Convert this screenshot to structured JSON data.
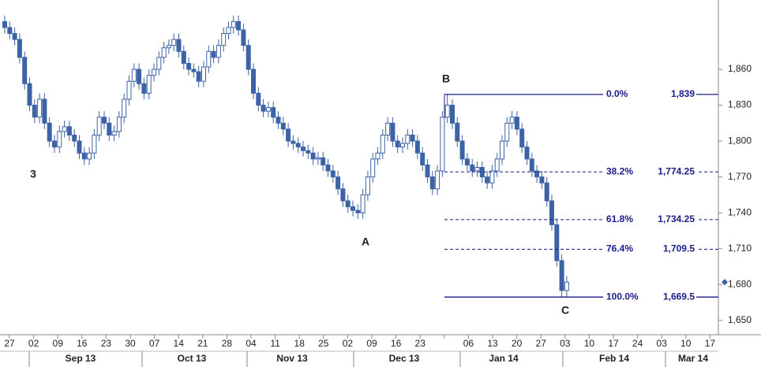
{
  "chart_data": {
    "type": "candlestick",
    "ylim": [
      1638,
      1918
    ],
    "yticks": [
      {
        "value": 1650,
        "label": "1,650"
      },
      {
        "value": 1680,
        "label": "1,680"
      },
      {
        "value": 1710,
        "label": "1,710"
      },
      {
        "value": 1740,
        "label": "1,740"
      },
      {
        "value": 1770,
        "label": "1,770"
      },
      {
        "value": 1800,
        "label": "1,800"
      },
      {
        "value": 1830,
        "label": "1,830"
      },
      {
        "value": 1860,
        "label": "1,860"
      }
    ],
    "categories": [
      "27",
      "02",
      "09",
      "16",
      "23",
      "30",
      "07",
      "14",
      "21",
      "28",
      "04",
      "11",
      "18",
      "25",
      "02",
      "09",
      "16",
      "23",
      null,
      "06",
      "13",
      "20",
      "27",
      "03",
      "10",
      "17",
      "24",
      "03",
      "10",
      "17"
    ],
    "months": [
      "Sep 13",
      "Oct 13",
      "Nov 13",
      "Dec 13",
      "Jan 14",
      "Feb 14",
      "Mar 14"
    ],
    "up_color": "#ffffff",
    "down_color": "#3c63a6",
    "line_color": "#3c63a6",
    "fib_color": "#1c1c8a",
    "fib_levels": [
      {
        "label": "0.0%",
        "value": 1839,
        "value_label": "1,839"
      },
      {
        "label": "38.2%",
        "value": 1774.25,
        "value_label": "1,774.25"
      },
      {
        "label": "61.8%",
        "value": 1734.25,
        "value_label": "1,734.25"
      },
      {
        "label": "76.4%",
        "value": 1709.5,
        "value_label": "1,709.5"
      },
      {
        "label": "100.0%",
        "value": 1669.5,
        "value_label": "1,669.5"
      }
    ],
    "points": [
      "3",
      "A",
      "B",
      "C"
    ],
    "candles": [
      [
        1900,
        1905,
        1890,
        1895
      ],
      [
        1895,
        1900,
        1885,
        1890
      ],
      [
        1890,
        1895,
        1880,
        1885
      ],
      [
        1885,
        1890,
        1865,
        1870
      ],
      [
        1870,
        1875,
        1843,
        1848
      ],
      [
        1848,
        1853,
        1825,
        1830
      ],
      [
        1830,
        1835,
        1815,
        1820
      ],
      [
        1820,
        1840,
        1815,
        1835
      ],
      [
        1835,
        1840,
        1810,
        1815
      ],
      [
        1815,
        1820,
        1795,
        1800
      ],
      [
        1800,
        1805,
        1790,
        1795
      ],
      [
        1795,
        1813,
        1790,
        1808
      ],
      [
        1808,
        1817,
        1803,
        1812
      ],
      [
        1812,
        1817,
        1800,
        1805
      ],
      [
        1805,
        1810,
        1795,
        1800
      ],
      [
        1800,
        1805,
        1785,
        1790
      ],
      [
        1790,
        1795,
        1780,
        1785
      ],
      [
        1785,
        1795,
        1780,
        1790
      ],
      [
        1790,
        1810,
        1785,
        1805
      ],
      [
        1805,
        1825,
        1800,
        1820
      ],
      [
        1820,
        1825,
        1810,
        1815
      ],
      [
        1815,
        1820,
        1800,
        1805
      ],
      [
        1805,
        1813,
        1800,
        1808
      ],
      [
        1808,
        1825,
        1803,
        1820
      ],
      [
        1820,
        1840,
        1815,
        1835
      ],
      [
        1835,
        1855,
        1830,
        1850
      ],
      [
        1850,
        1865,
        1845,
        1860
      ],
      [
        1860,
        1865,
        1843,
        1848
      ],
      [
        1848,
        1853,
        1835,
        1840
      ],
      [
        1840,
        1860,
        1835,
        1855
      ],
      [
        1855,
        1865,
        1850,
        1860
      ],
      [
        1860,
        1875,
        1855,
        1870
      ],
      [
        1870,
        1883,
        1865,
        1878
      ],
      [
        1878,
        1885,
        1873,
        1880
      ],
      [
        1880,
        1890,
        1875,
        1885
      ],
      [
        1885,
        1890,
        1870,
        1875
      ],
      [
        1875,
        1880,
        1860,
        1865
      ],
      [
        1865,
        1870,
        1855,
        1860
      ],
      [
        1860,
        1865,
        1853,
        1858
      ],
      [
        1858,
        1863,
        1845,
        1850
      ],
      [
        1850,
        1867,
        1845,
        1862
      ],
      [
        1862,
        1880,
        1857,
        1875
      ],
      [
        1875,
        1880,
        1865,
        1870
      ],
      [
        1870,
        1885,
        1865,
        1880
      ],
      [
        1880,
        1895,
        1875,
        1890
      ],
      [
        1890,
        1900,
        1885,
        1895
      ],
      [
        1895,
        1905,
        1890,
        1900
      ],
      [
        1900,
        1905,
        1888,
        1893
      ],
      [
        1893,
        1898,
        1875,
        1880
      ],
      [
        1880,
        1885,
        1855,
        1860
      ],
      [
        1860,
        1865,
        1835,
        1840
      ],
      [
        1840,
        1845,
        1825,
        1830
      ],
      [
        1830,
        1835,
        1820,
        1825
      ],
      [
        1825,
        1833,
        1820,
        1828
      ],
      [
        1828,
        1833,
        1815,
        1820
      ],
      [
        1820,
        1825,
        1810,
        1815
      ],
      [
        1815,
        1820,
        1805,
        1810
      ],
      [
        1810,
        1815,
        1795,
        1800
      ],
      [
        1800,
        1805,
        1793,
        1798
      ],
      [
        1798,
        1803,
        1790,
        1795
      ],
      [
        1795,
        1800,
        1787,
        1792
      ],
      [
        1792,
        1797,
        1785,
        1790
      ],
      [
        1790,
        1795,
        1780,
        1785
      ],
      [
        1785,
        1791,
        1780,
        1786
      ],
      [
        1786,
        1791,
        1775,
        1780
      ],
      [
        1780,
        1785,
        1770,
        1775
      ],
      [
        1775,
        1780,
        1765,
        1770
      ],
      [
        1770,
        1775,
        1755,
        1760
      ],
      [
        1760,
        1765,
        1745,
        1750
      ],
      [
        1750,
        1755,
        1740,
        1745
      ],
      [
        1745,
        1750,
        1737,
        1742
      ],
      [
        1742,
        1747,
        1735,
        1740
      ],
      [
        1740,
        1760,
        1735,
        1755
      ],
      [
        1755,
        1775,
        1750,
        1770
      ],
      [
        1770,
        1790,
        1765,
        1785
      ],
      [
        1785,
        1795,
        1780,
        1790
      ],
      [
        1790,
        1810,
        1785,
        1805
      ],
      [
        1805,
        1820,
        1800,
        1815
      ],
      [
        1815,
        1820,
        1795,
        1800
      ],
      [
        1800,
        1805,
        1790,
        1795
      ],
      [
        1795,
        1803,
        1790,
        1798
      ],
      [
        1798,
        1810,
        1793,
        1805
      ],
      [
        1805,
        1810,
        1795,
        1800
      ],
      [
        1800,
        1805,
        1785,
        1790
      ],
      [
        1790,
        1795,
        1775,
        1780
      ],
      [
        1780,
        1785,
        1765,
        1770
      ],
      [
        1770,
        1775,
        1755,
        1760
      ],
      [
        1760,
        1780,
        1755,
        1775
      ],
      [
        1775,
        1825,
        1770,
        1820
      ],
      [
        1820,
        1839,
        1815,
        1830
      ],
      [
        1830,
        1835,
        1810,
        1815
      ],
      [
        1815,
        1820,
        1795,
        1800
      ],
      [
        1800,
        1805,
        1780,
        1785
      ],
      [
        1785,
        1790,
        1775,
        1780
      ],
      [
        1780,
        1785,
        1770,
        1775
      ],
      [
        1775,
        1783,
        1770,
        1778
      ],
      [
        1778,
        1783,
        1765,
        1770
      ],
      [
        1770,
        1775,
        1760,
        1765
      ],
      [
        1765,
        1780,
        1760,
        1775
      ],
      [
        1775,
        1790,
        1770,
        1785
      ],
      [
        1785,
        1805,
        1780,
        1800
      ],
      [
        1800,
        1820,
        1795,
        1815
      ],
      [
        1815,
        1825,
        1810,
        1820
      ],
      [
        1820,
        1825,
        1805,
        1810
      ],
      [
        1810,
        1815,
        1790,
        1795
      ],
      [
        1795,
        1800,
        1780,
        1785
      ],
      [
        1785,
        1790,
        1770,
        1775
      ],
      [
        1775,
        1780,
        1765,
        1770
      ],
      [
        1770,
        1775,
        1760,
        1765
      ],
      [
        1765,
        1770,
        1745,
        1750
      ],
      [
        1750,
        1755,
        1725,
        1730
      ],
      [
        1730,
        1735,
        1695,
        1700
      ],
      [
        1700,
        1705,
        1669.5,
        1675
      ],
      [
        1675,
        1687,
        1670,
        1682
      ]
    ]
  }
}
